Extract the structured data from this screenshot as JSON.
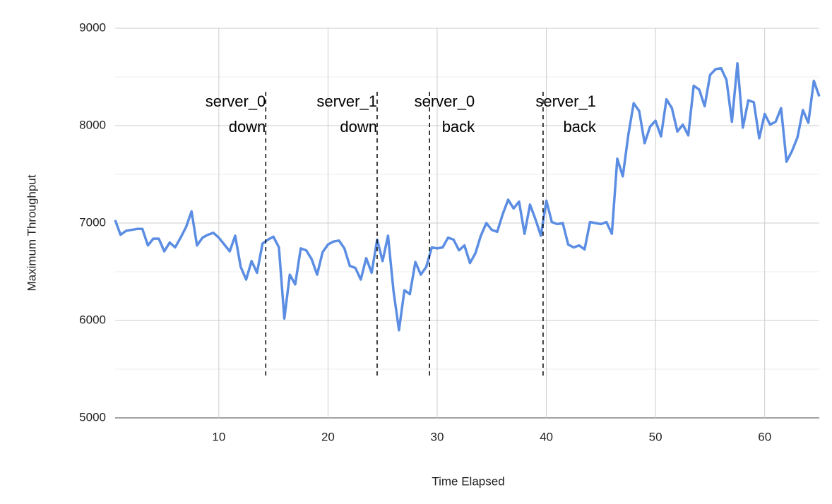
{
  "chart_data": {
    "type": "line",
    "x_label": "Time Elapsed",
    "y_label": "Maximum Throughput",
    "x": [
      0.5,
      1,
      1.5,
      2,
      2.5,
      3,
      3.5,
      4,
      4.5,
      5,
      5.5,
      6,
      6.5,
      7,
      7.5,
      8,
      8.5,
      9,
      9.5,
      10,
      10.5,
      11,
      11.5,
      12,
      12.5,
      13,
      13.5,
      14,
      14.5,
      15,
      15.5,
      16,
      16.5,
      17,
      17.5,
      18,
      18.5,
      19,
      19.5,
      20,
      20.5,
      21,
      21.5,
      22,
      22.5,
      23,
      23.5,
      24,
      24.5,
      25,
      25.5,
      26,
      26.5,
      27,
      27.5,
      28,
      28.5,
      29,
      29.5,
      30,
      30.5,
      31,
      31.5,
      32,
      32.5,
      33,
      33.5,
      34,
      34.5,
      35,
      35.5,
      36,
      36.5,
      37,
      37.5,
      38,
      38.5,
      39,
      39.5,
      40,
      40.5,
      41,
      41.5,
      42,
      42.5,
      43,
      43.5,
      44,
      44.5,
      45,
      45.5,
      46,
      46.5,
      47,
      47.5,
      48,
      48.5,
      49,
      49.5,
      50,
      50.5,
      51,
      51.5,
      52,
      52.5,
      53,
      53.5,
      54,
      54.5,
      55,
      55.5,
      56,
      56.5,
      57,
      57.5,
      58,
      58.5,
      59,
      59.5,
      60,
      60.5,
      61,
      61.5,
      62,
      62.5,
      63,
      63.5,
      64,
      64.5,
      65
    ],
    "series": [
      {
        "color": "#5b8de3",
        "values": [
          7030,
          6880,
          6920,
          6930,
          6940,
          6940,
          6770,
          6840,
          6840,
          6710,
          6800,
          6750,
          6850,
          6960,
          7120,
          6770,
          6850,
          6880,
          6900,
          6850,
          6780,
          6710,
          6870,
          6550,
          6420,
          6610,
          6490,
          6790,
          6830,
          6860,
          6750,
          6020,
          6470,
          6370,
          6740,
          6720,
          6630,
          6470,
          6700,
          6780,
          6810,
          6820,
          6740,
          6560,
          6540,
          6420,
          6640,
          6490,
          6830,
          6610,
          6870,
          6300,
          5900,
          6310,
          6270,
          6600,
          6470,
          6550,
          6750,
          6740,
          6750,
          6850,
          6830,
          6720,
          6770,
          6590,
          6690,
          6870,
          7000,
          6930,
          6910,
          7090,
          7240,
          7150,
          7220,
          6890,
          7190,
          7040,
          6870,
          7230,
          7010,
          6990,
          7000,
          6780,
          6750,
          6770,
          6730,
          7010,
          7000,
          6990,
          7010,
          6890,
          7660,
          7480,
          7900,
          8230,
          8150,
          7820,
          7990,
          8050,
          7890,
          8270,
          8180,
          7940,
          8010,
          7900,
          8410,
          8370,
          8200,
          8520,
          8580,
          8590,
          8470,
          8040,
          8640,
          7980,
          8260,
          8240,
          7870,
          8120,
          8010,
          8040,
          8180,
          7630,
          7740,
          7880,
          8160,
          8030,
          8460,
          8300
        ]
      }
    ],
    "xlim": [
      0.5,
      65
    ],
    "xticks": [
      10,
      20,
      30,
      40,
      50,
      60
    ],
    "ylim": [
      5000,
      9000
    ],
    "yticks": [
      5000,
      6000,
      7000,
      8000,
      9000
    ],
    "minor_yticks": [
      5500,
      6500,
      7500,
      8500
    ],
    "grid": true,
    "annotations": [
      {
        "x": 14.3,
        "lines": [
          "server_0",
          "down"
        ]
      },
      {
        "x": 24.5,
        "lines": [
          "server_1",
          "down"
        ]
      },
      {
        "x": 29.3,
        "lines": [
          "server_0",
          "back"
        ]
      },
      {
        "x": 39.7,
        "lines": [
          "server_1",
          "back"
        ]
      }
    ]
  }
}
